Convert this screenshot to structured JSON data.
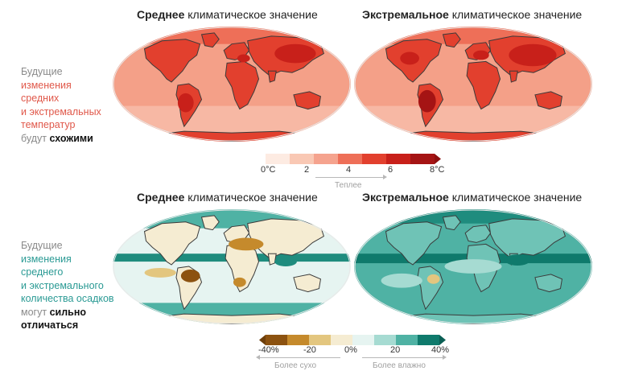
{
  "top": {
    "titles": [
      {
        "bold": "Среднее",
        "rest": " климатическое значение"
      },
      {
        "bold": "Экстремальное",
        "rest": " климатическое значение"
      }
    ],
    "side": {
      "line1": "Будущие",
      "line2": "изменения",
      "line3": "средних",
      "line4": "и экстремальных",
      "line5": "температур",
      "line6a": "будут ",
      "line6b": "схожими"
    },
    "scale": {
      "colors": [
        "#fdebe2",
        "#f9c8b4",
        "#f5a38e",
        "#ee6f58",
        "#e2402e",
        "#c8201a",
        "#a51414"
      ],
      "ticks": [
        "0°C",
        "2",
        "4",
        "6",
        "8°C"
      ],
      "arrow_label": "Теплее"
    }
  },
  "bottom": {
    "titles": [
      {
        "bold": "Среднее",
        "rest": " климатическое значение"
      },
      {
        "bold": "Экстремальное",
        "rest": " климатическое значение"
      }
    ],
    "side": {
      "line1": "Будущие",
      "line2": "изменения",
      "line3": "среднего",
      "line4": "и экстремального",
      "line5": "количества осадков",
      "line6a": "могут ",
      "line6b": "сильно",
      "line7": "отличаться"
    },
    "scale": {
      "colors": [
        "#8c5210",
        "#c58a2c",
        "#e3c67f",
        "#f5ecd2",
        "#e6f4f1",
        "#a6dbd2",
        "#4fb2a4",
        "#0f7a6c"
      ],
      "ticks": [
        "-40%",
        "-20",
        "0%",
        "20",
        "40%"
      ],
      "arrow_left_label": "Более сухо",
      "arrow_right_label": "Более влажно"
    }
  }
}
